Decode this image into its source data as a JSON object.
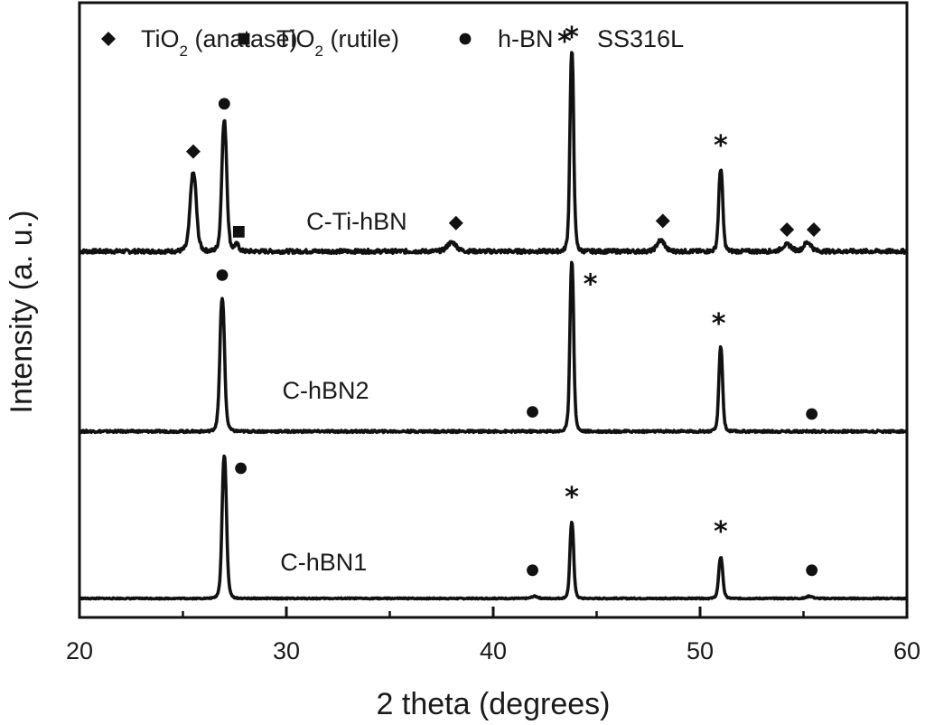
{
  "chart_data": {
    "type": "line",
    "xlabel": "2 theta (degrees)",
    "ylabel": "Intensity (a. u.)",
    "xlim": [
      20,
      60
    ],
    "x_ticks": [
      "20",
      "30",
      "40",
      "50",
      "60"
    ],
    "grid": false,
    "legend_position": "top",
    "legend": [
      {
        "marker": "diamond",
        "label_main": "TiO",
        "label_sub": "2",
        "label_rest": " (anatase)"
      },
      {
        "marker": "square",
        "label_main": "TiO",
        "label_sub": "2",
        "label_rest": " (rutile)"
      },
      {
        "marker": "circle",
        "label_main": "h-BN",
        "label_sub": "",
        "label_rest": ""
      },
      {
        "marker": "star",
        "label_main": "SS316L",
        "label_sub": "",
        "label_rest": ""
      }
    ],
    "series": [
      {
        "name": "C-Ti-hBN",
        "baseline": 1.6,
        "noise": 0.018,
        "peaks": [
          {
            "x": 25.5,
            "height": 0.36,
            "width": 0.2
          },
          {
            "x": 27.0,
            "height": 0.6,
            "width": 0.16
          },
          {
            "x": 27.6,
            "height": 0.03,
            "width": 0.15
          },
          {
            "x": 38.0,
            "height": 0.04,
            "width": 0.3
          },
          {
            "x": 43.8,
            "height": 0.92,
            "width": 0.12
          },
          {
            "x": 48.1,
            "height": 0.05,
            "width": 0.25
          },
          {
            "x": 51.0,
            "height": 0.38,
            "width": 0.13
          },
          {
            "x": 54.2,
            "height": 0.03,
            "width": 0.3
          },
          {
            "x": 55.2,
            "height": 0.04,
            "width": 0.25
          }
        ],
        "markers": [
          {
            "type": "diamond",
            "x": 25.5,
            "y": 2.06
          },
          {
            "type": "circle",
            "x": 27.0,
            "y": 2.28
          },
          {
            "type": "square",
            "x": 27.7,
            "y": 1.69
          },
          {
            "type": "diamond",
            "x": 38.2,
            "y": 1.73
          },
          {
            "type": "star",
            "x": 43.8,
            "y": 2.6
          },
          {
            "type": "diamond",
            "x": 48.2,
            "y": 1.74
          },
          {
            "type": "star",
            "x": 51.0,
            "y": 2.1
          },
          {
            "type": "diamond",
            "x": 54.2,
            "y": 1.7
          },
          {
            "type": "diamond",
            "x": 55.5,
            "y": 1.7
          }
        ]
      },
      {
        "name": "C-hBN2",
        "baseline": 0.77,
        "noise": 0.01,
        "peaks": [
          {
            "x": 26.9,
            "height": 0.61,
            "width": 0.15
          },
          {
            "x": 43.8,
            "height": 0.78,
            "width": 0.12
          },
          {
            "x": 51.0,
            "height": 0.39,
            "width": 0.12
          }
        ],
        "markers": [
          {
            "type": "circle",
            "x": 26.9,
            "y": 1.49
          },
          {
            "type": "star",
            "x": 44.7,
            "y": 1.46
          },
          {
            "type": "star",
            "x": 50.9,
            "y": 1.28
          },
          {
            "type": "circle",
            "x": 41.9,
            "y": 0.86
          },
          {
            "type": "circle",
            "x": 55.4,
            "y": 0.85
          }
        ]
      },
      {
        "name": "C-hBN1",
        "baseline": 0.0,
        "noise": 0.005,
        "peaks": [
          {
            "x": 27.0,
            "height": 0.66,
            "width": 0.14
          },
          {
            "x": 42.0,
            "height": 0.01,
            "width": 0.2
          },
          {
            "x": 43.8,
            "height": 0.35,
            "width": 0.12
          },
          {
            "x": 51.0,
            "height": 0.19,
            "width": 0.13
          },
          {
            "x": 55.3,
            "height": 0.01,
            "width": 0.2
          }
        ],
        "markers": [
          {
            "type": "circle",
            "x": 27.8,
            "y": 0.6
          },
          {
            "type": "star",
            "x": 43.8,
            "y": 0.48
          },
          {
            "type": "star",
            "x": 51.0,
            "y": 0.32
          },
          {
            "type": "circle",
            "x": 41.9,
            "y": 0.13
          },
          {
            "type": "circle",
            "x": 55.4,
            "y": 0.13
          }
        ]
      }
    ],
    "sample_labels": [
      {
        "text": "C-Ti-hBN",
        "x": 33.4,
        "y": 1.7
      },
      {
        "text": "C-hBN2",
        "x": 31.9,
        "y": 0.92
      },
      {
        "text": "C-hBN1",
        "x": 31.8,
        "y": 0.13
      }
    ]
  }
}
